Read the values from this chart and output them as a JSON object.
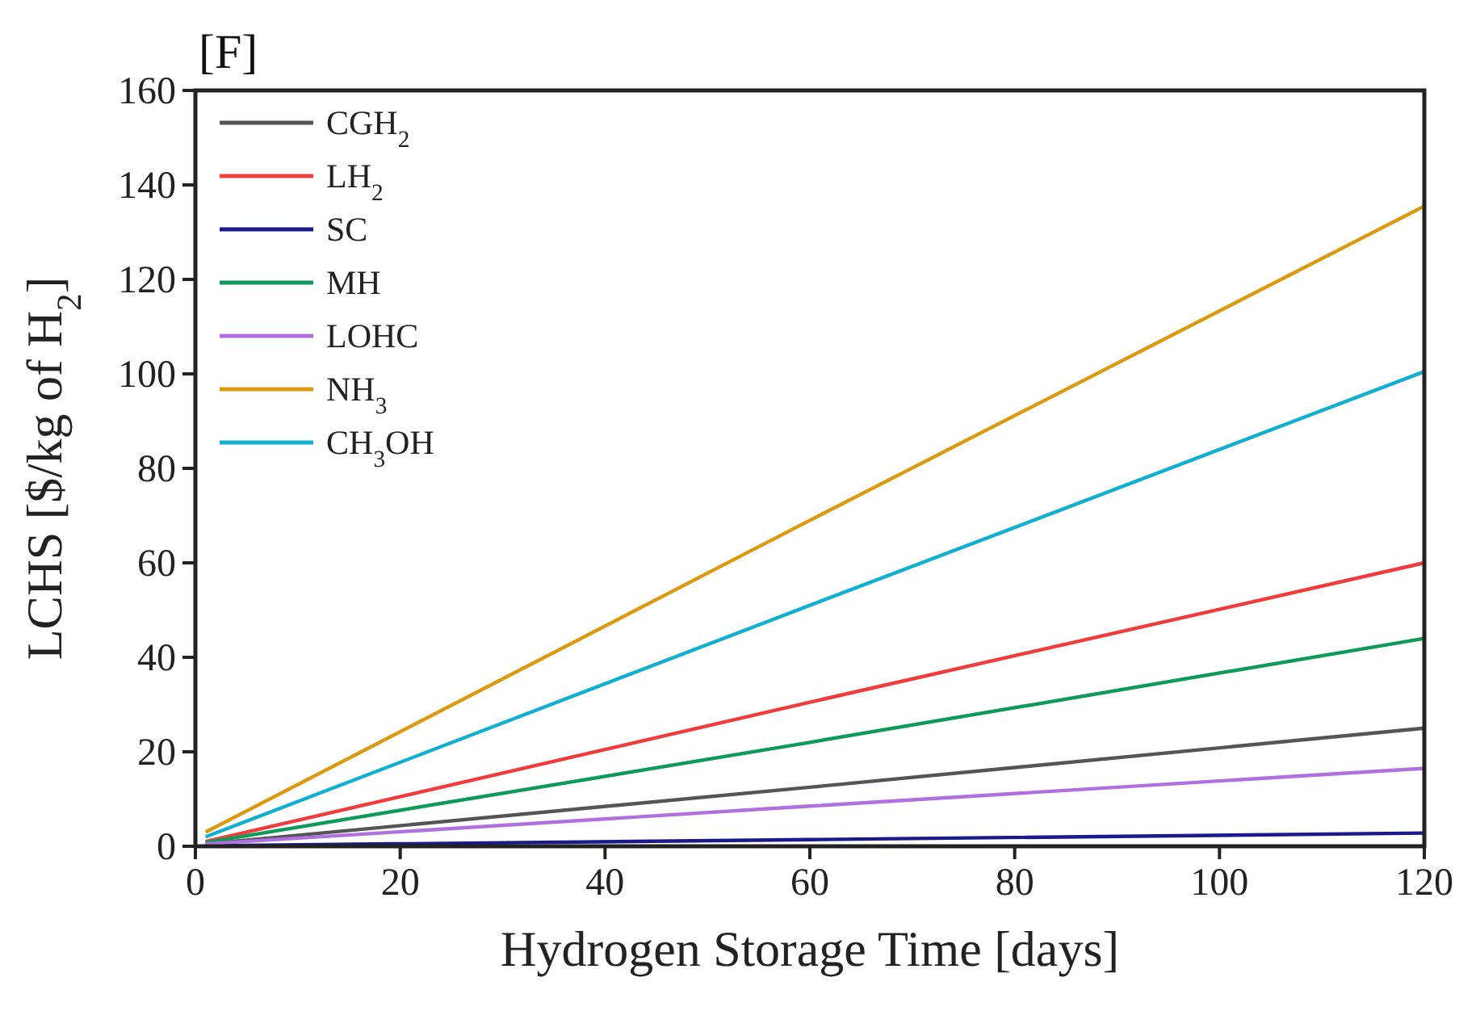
{
  "chart_data": {
    "type": "line",
    "title": "[F]",
    "xlabel": "Hydrogen Storage Time [days]",
    "ylabel": "LCHS [$/kg of H$_{2}$]",
    "x": [
      1,
      60,
      120
    ],
    "xlim": [
      0,
      120
    ],
    "xticks": [
      0,
      20,
      40,
      60,
      80,
      100,
      120
    ],
    "ylim": [
      0,
      160
    ],
    "yticks": [
      0,
      20,
      40,
      60,
      80,
      100,
      120,
      140,
      160
    ],
    "grid": false,
    "legend": "top left",
    "marker": "none",
    "line_style": "solid",
    "series": [
      {
        "name": "CGH$_{2}$",
        "color": "#555555",
        "values": [
          0.5,
          12.5,
          25
        ]
      },
      {
        "name": "LH$_{2}$",
        "color": "#f03c3c",
        "values": [
          1,
          30.5,
          60
        ]
      },
      {
        "name": "SC",
        "color": "#1a1a8c",
        "values": [
          0.1,
          1.4,
          2.8
        ]
      },
      {
        "name": "MH",
        "color": "#0f9a5a",
        "values": [
          0.8,
          22,
          44
        ]
      },
      {
        "name": "LOHC",
        "color": "#b070e0",
        "values": [
          0.5,
          8.5,
          16.5
        ]
      },
      {
        "name": "NH$_{3}$",
        "color": "#dc9a10",
        "values": [
          3,
          69,
          135.5
        ]
      },
      {
        "name": "CH$_{3}$OH",
        "color": "#12b0d0",
        "values": [
          2,
          51,
          100.5
        ]
      }
    ]
  }
}
